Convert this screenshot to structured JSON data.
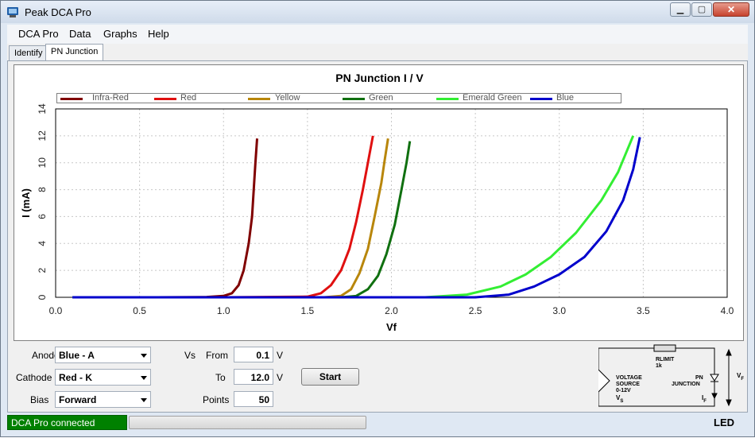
{
  "window": {
    "title": "Peak DCA Pro"
  },
  "menu": [
    "DCA Pro",
    "Data",
    "Graphs",
    "Help"
  ],
  "tabs": [
    {
      "label": "Identify",
      "active": false
    },
    {
      "label": "PN Junction",
      "active": true
    }
  ],
  "chart_data": {
    "type": "line",
    "title": "PN Junction I / V",
    "xlabel": "Vf",
    "ylabel": "I (mA)",
    "xlim": [
      0.0,
      4.0
    ],
    "ylim": [
      0,
      14
    ],
    "xticks": [
      "0.0",
      "0.5",
      "1.0",
      "1.5",
      "2.0",
      "2.5",
      "3.0",
      "3.5",
      "4.0"
    ],
    "yticks": [
      "0",
      "2",
      "4",
      "6",
      "8",
      "10",
      "12",
      "14"
    ],
    "grid": true,
    "legend_position": "top",
    "series": [
      {
        "name": "Infra-Red",
        "color": "#800000",
        "x": [
          0.1,
          0.6,
          0.9,
          1.0,
          1.05,
          1.09,
          1.12,
          1.15,
          1.17,
          1.18,
          1.19,
          1.2
        ],
        "y": [
          0,
          0,
          0.02,
          0.1,
          0.3,
          0.9,
          2,
          4,
          6,
          8,
          10,
          11.8
        ]
      },
      {
        "name": "Red",
        "color": "#e01010",
        "x": [
          0.1,
          1.0,
          1.5,
          1.58,
          1.64,
          1.7,
          1.75,
          1.79,
          1.83,
          1.86,
          1.89
        ],
        "y": [
          0,
          0,
          0.05,
          0.3,
          0.9,
          2,
          3.6,
          5.6,
          8,
          10,
          12
        ]
      },
      {
        "name": "Yellow",
        "color": "#b8860b",
        "x": [
          0.1,
          1.0,
          1.6,
          1.7,
          1.76,
          1.81,
          1.86,
          1.9,
          1.94,
          1.96,
          1.98
        ],
        "y": [
          0,
          0,
          0,
          0.1,
          0.6,
          1.8,
          3.6,
          6,
          8.5,
          10.2,
          11.8
        ]
      },
      {
        "name": "Green",
        "color": "#107010",
        "x": [
          0.1,
          1.0,
          1.7,
          1.79,
          1.86,
          1.92,
          1.97,
          2.02,
          2.06,
          2.09,
          2.11
        ],
        "y": [
          0,
          0,
          0,
          0.1,
          0.6,
          1.6,
          3.2,
          5.4,
          8,
          10,
          11.6
        ]
      },
      {
        "name": "Emerald Green",
        "color": "#33ee33",
        "x": [
          0.1,
          1.0,
          2.2,
          2.45,
          2.65,
          2.8,
          2.95,
          3.1,
          3.25,
          3.35,
          3.44
        ],
        "y": [
          0,
          0,
          0,
          0.2,
          0.8,
          1.7,
          3,
          4.8,
          7.2,
          9.3,
          12
        ]
      },
      {
        "name": "Blue",
        "color": "#0000cc",
        "x": [
          0.1,
          1.0,
          2.5,
          2.7,
          2.85,
          3.0,
          3.15,
          3.28,
          3.38,
          3.44,
          3.48
        ],
        "y": [
          0,
          0,
          0,
          0.2,
          0.8,
          1.7,
          3,
          4.9,
          7.2,
          9.5,
          11.9
        ]
      }
    ]
  },
  "controls": {
    "anode_label": "Anode",
    "anode_value": "Blue - A",
    "cathode_label": "Cathode",
    "cathode_value": "Red - K",
    "bias_label": "Bias",
    "bias_value": "Forward",
    "vs_label": "Vs",
    "from_label": "From",
    "from_value": "0.1",
    "from_unit": "V",
    "to_label": "To",
    "to_value": "12.0",
    "to_unit": "V",
    "points_label": "Points",
    "points_value": "50",
    "start_label": "Start"
  },
  "circuit": {
    "rlimit": "RLIMIT",
    "rvalue": "1k",
    "source_line1": "VOLTAGE",
    "source_line2": "SOURCE",
    "source_line3": "0-12V",
    "vs": "V",
    "vs_sub": "S",
    "pn_line1": "PN",
    "pn_line2": "JUNCTION",
    "if": "I",
    "if_sub": "F",
    "vf": "V",
    "vf_sub": "F"
  },
  "status": {
    "connection": "DCA Pro connected",
    "component": "LED"
  }
}
